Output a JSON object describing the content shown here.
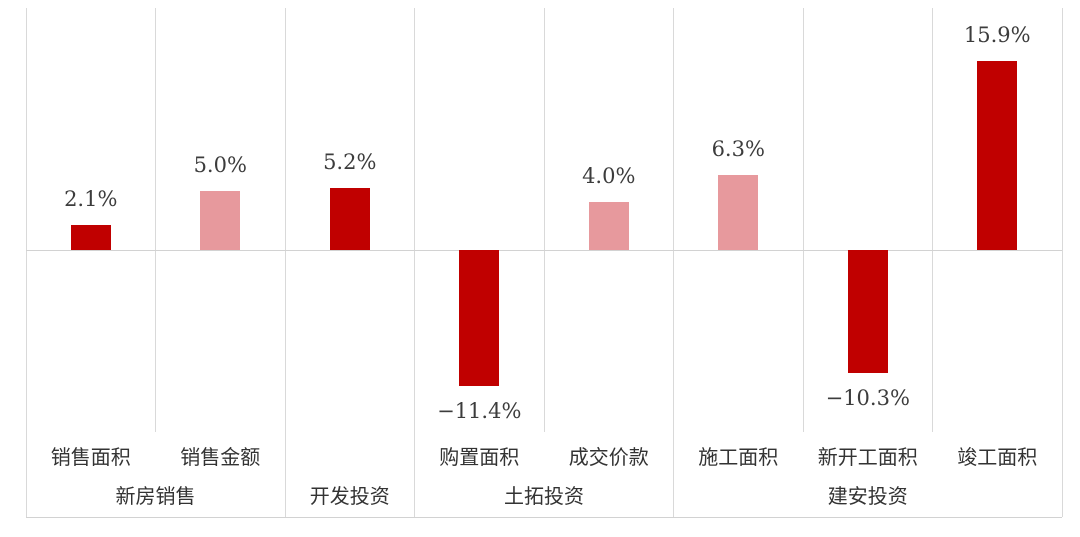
{
  "chart_data": {
    "type": "bar",
    "title": "",
    "categories": [
      "销售面积",
      "销售金额",
      "",
      "购置面积",
      "成交价款",
      "施工面积",
      "新开工面积",
      "竣工面积"
    ],
    "values": [
      2.1,
      5.0,
      5.2,
      -11.4,
      4.0,
      6.3,
      -10.3,
      15.9
    ],
    "data_labels": [
      "2.1%",
      "5.0%",
      "5.2%",
      "−11.4%",
      "4.0%",
      "6.3%",
      "−10.3%",
      "15.9%"
    ],
    "group_labels": [
      {
        "label": "新房销售",
        "span": [
          0,
          2
        ]
      },
      {
        "label": "开发投资",
        "span": [
          2,
          3
        ]
      },
      {
        "label": "土拓投资",
        "span": [
          3,
          5
        ]
      },
      {
        "label": "建安投资",
        "span": [
          5,
          8
        ]
      }
    ],
    "bar_color_keys": [
      "dark_red",
      "light_pink",
      "dark_red",
      "dark_red",
      "light_pink",
      "light_pink",
      "dark_red",
      "dark_red"
    ],
    "colors": {
      "dark_red": "#C00000",
      "light_pink": "#E7999D",
      "gridline": "#D9D9D9",
      "axis_line": "#D2D2D2",
      "label_text": "#3C3C3C"
    },
    "ylim": [
      -15,
      20
    ],
    "legend": "none",
    "grid": "vertical category separators; horizontal zero axis; bottom border below group labels"
  }
}
